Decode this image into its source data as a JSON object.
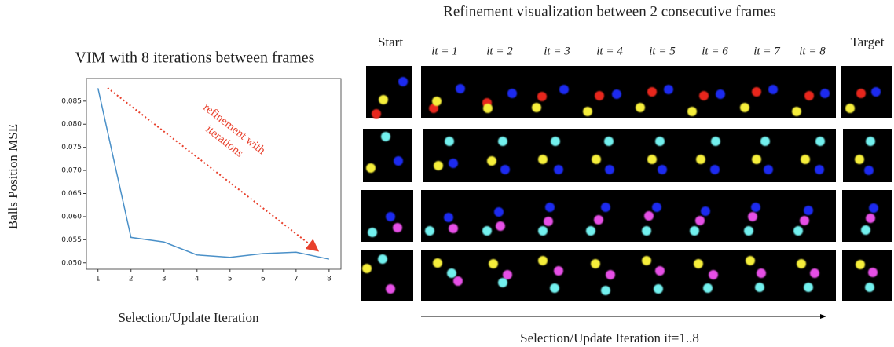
{
  "chart_data": {
    "type": "line",
    "title": "VIM with 8 iterations between frames",
    "y_label": "Balls Position MSE",
    "x_label": "Selection/Update Iteration",
    "annotation": [
      "refinement with",
      "iterations"
    ],
    "x": [
      1,
      2,
      3,
      4,
      5,
      6,
      7,
      8
    ],
    "series": [
      {
        "color": "#4a90c8",
        "values": [
          0.0878,
          0.0555,
          0.0545,
          0.0517,
          0.0512,
          0.052,
          0.0523,
          0.0508
        ]
      }
    ],
    "xlim": [
      0.65,
      8.36
    ],
    "xticks": [
      1,
      2,
      3,
      4,
      5,
      6,
      7,
      8
    ],
    "ylim": [
      0.0486,
      0.0899
    ],
    "yticks": [
      {
        "value": 0.05,
        "label": "0.050"
      },
      0.055,
      {
        "value": 0.06,
        "label": "0.060"
      },
      0.065,
      {
        "value": 0.07,
        "label": "0.070"
      },
      0.075,
      {
        "value": 0.08,
        "label": "0.080"
      },
      0.085
    ],
    "grid": false
  },
  "figure": {
    "title": "Refinement visualization between 2 consecutive frames",
    "start_label": "Start",
    "target_label": "Target",
    "iteration_labels": [
      "it = 1",
      "it = 2",
      "it = 3",
      "it = 4",
      "it = 5",
      "it = 6",
      "it = 7",
      "it = 8"
    ],
    "x_label": "Selection/Update Iteration it=1..8"
  }
}
